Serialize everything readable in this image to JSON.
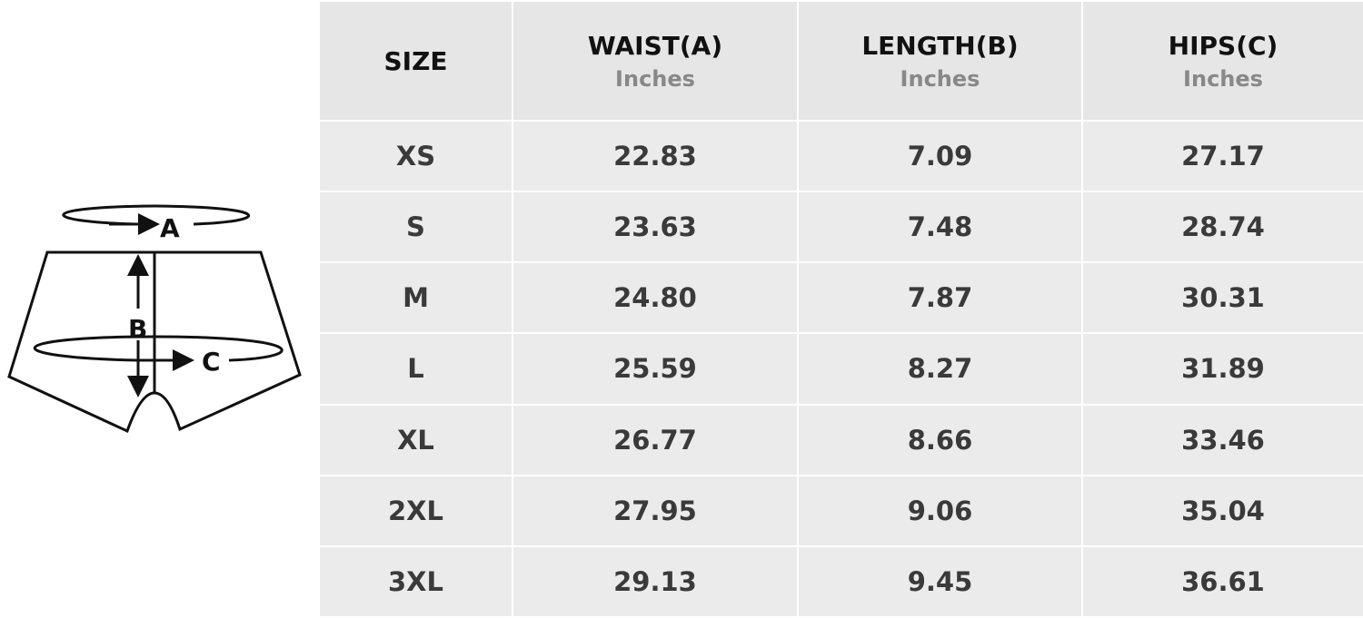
{
  "diagram": {
    "labels": {
      "waist": "A",
      "length": "B",
      "hips": "C"
    }
  },
  "table": {
    "headers": [
      {
        "name": "SIZE",
        "unit": ""
      },
      {
        "name": "WAIST(A)",
        "unit": "Inches"
      },
      {
        "name": "LENGTH(B)",
        "unit": "Inches"
      },
      {
        "name": "HIPS(C)",
        "unit": "Inches"
      }
    ],
    "rows": [
      [
        "XS",
        "22.83",
        "7.09",
        "27.17"
      ],
      [
        "S",
        "23.63",
        "7.48",
        "28.74"
      ],
      [
        "M",
        "24.80",
        "7.87",
        "30.31"
      ],
      [
        "L",
        "25.59",
        "8.27",
        "31.89"
      ],
      [
        "XL",
        "26.77",
        "8.66",
        "33.46"
      ],
      [
        "2XL",
        "27.95",
        "9.06",
        "35.04"
      ],
      [
        "3XL",
        "29.13",
        "9.45",
        "36.61"
      ]
    ]
  },
  "colors": {
    "cell_bg": "#ebebeb",
    "header_bg": "#e6e6e6",
    "text": "#3a3a3a",
    "unit_text": "#888888"
  }
}
